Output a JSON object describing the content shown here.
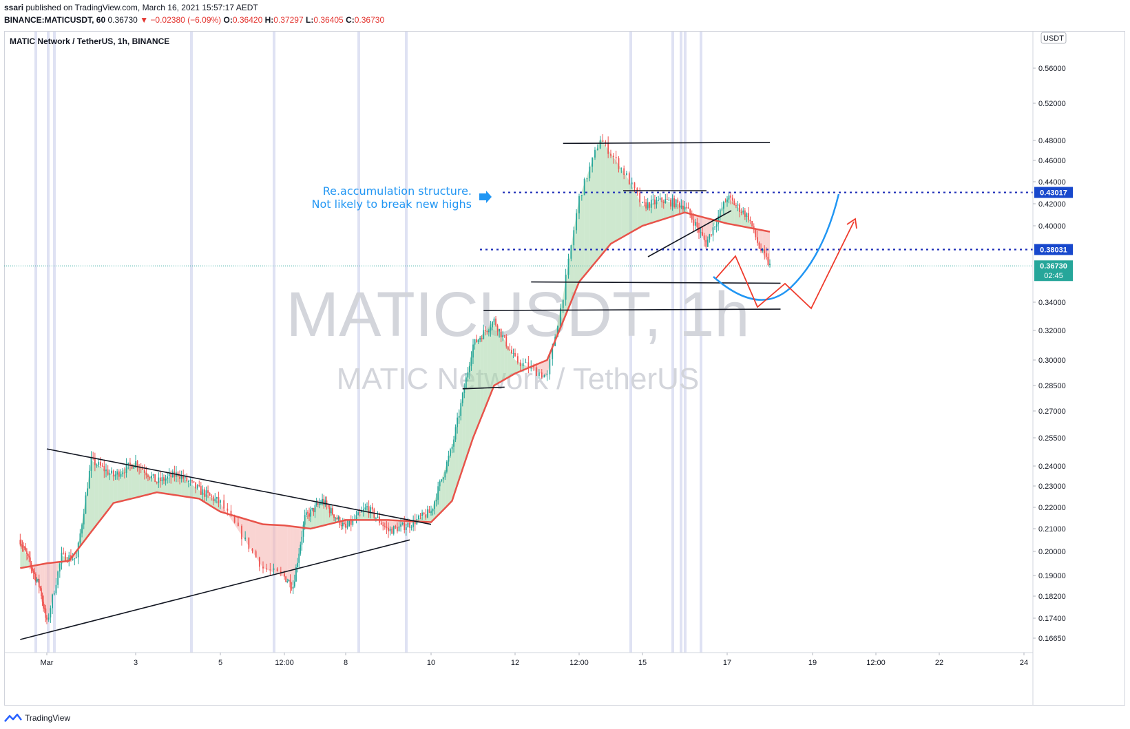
{
  "header": {
    "author": "ssari",
    "published_text": "published on TradingView.com, March 16, 2021 15:57:17 AEDT",
    "symbol_line": "BINANCE:MATICUSDT, 60",
    "last": "0.36730",
    "change": "▼ −0.02380 (−6.09%)",
    "o_label": "O:",
    "o": "0.36420",
    "h_label": "H:",
    "h": "0.37297",
    "l_label": "L:",
    "l": "0.36405",
    "c_label": "C:",
    "c": "0.36730"
  },
  "pane_title": "MATIC Network / TetherUS, 1h, BINANCE",
  "currency_badge": "USDT",
  "watermark": {
    "symbol": "MATICUSDT, 1h",
    "name": "MATIC Network / TetherUS"
  },
  "annotation": {
    "line1": "Re.accumulation structure.",
    "line2": "Not likely to break new highs"
  },
  "price_tags": [
    {
      "value": "0.43017",
      "color": "#1848cc"
    },
    {
      "value": "0.38031",
      "color": "#1848cc"
    },
    {
      "value": "0.36730",
      "sub": "02:45",
      "color": "#26a69a"
    }
  ],
  "footer": {
    "brand": "TradingView"
  },
  "colors": {
    "up": "#26a69a",
    "down": "#ef5350",
    "ema": "#e8534a",
    "cloud_up": "#a5d6a7",
    "cloud_down": "#f4b1ad",
    "level": "#1f2fb8",
    "curve_blue": "#2196f3",
    "path_red": "#ef3b2c",
    "session_band": "#c5cae9"
  },
  "chart_data": {
    "type": "candlestick",
    "scale": "log",
    "ylim": [
      0.162,
      0.595
    ],
    "y_ticks": [
      "0.56000",
      "0.52000",
      "0.48000",
      "0.46000",
      "0.44000",
      "0.42000",
      "0.40000",
      "0.34000",
      "0.32000",
      "0.30000",
      "0.28500",
      "0.27000",
      "0.25500",
      "0.24000",
      "0.23000",
      "0.22000",
      "0.21000",
      "0.20000",
      "0.19000",
      "0.18200",
      "0.17400",
      "0.16650"
    ],
    "x_ticks": [
      "Mar",
      "3",
      "5",
      "12:00",
      "8",
      "10",
      "12",
      "12:00",
      "15",
      "17",
      "19",
      "12:00",
      "22",
      "24"
    ],
    "price_path": [
      [
        "Feb 28 00:00",
        0.205
      ],
      [
        "Feb 28 18:00",
        0.185
      ],
      [
        "Mar 1 00:00",
        0.172
      ],
      [
        "Mar 1 08:00",
        0.198
      ],
      [
        "Mar 1 16:00",
        0.197
      ],
      [
        "Mar 2 00:00",
        0.243
      ],
      [
        "Mar 2 12:00",
        0.235
      ],
      [
        "Mar 3 00:00",
        0.242
      ],
      [
        "Mar 3 12:00",
        0.232
      ],
      [
        "Mar 4 00:00",
        0.236
      ],
      [
        "Mar 4 12:00",
        0.228
      ],
      [
        "Mar 5 00:00",
        0.222
      ],
      [
        "Mar 5 12:00",
        0.193
      ],
      [
        "Mar 6 00:00",
        0.186
      ],
      [
        "Mar 6 08:00",
        0.215
      ],
      [
        "Mar 6 20:00",
        0.223
      ],
      [
        "Mar 7 12:00",
        0.21
      ],
      [
        "Mar 8 00:00",
        0.22
      ],
      [
        "Mar 8 12:00",
        0.209
      ],
      [
        "Mar 9 00:00",
        0.212
      ],
      [
        "Mar 9 12:00",
        0.218
      ],
      [
        "Mar 10 00:00",
        0.25
      ],
      [
        "Mar 10 12:00",
        0.31
      ],
      [
        "Mar 11 00:00",
        0.327
      ],
      [
        "Mar 11 12:00",
        0.3
      ],
      [
        "Mar 12 00:00",
        0.29
      ],
      [
        "Mar 12 06:00",
        0.345
      ],
      [
        "Mar 12 12:00",
        0.425
      ],
      [
        "Mar 12 20:00",
        0.482
      ],
      [
        "Mar 13 06:00",
        0.445
      ],
      [
        "Mar 13 12:00",
        0.418
      ],
      [
        "Mar 14 00:00",
        0.423
      ],
      [
        "Mar 14 12:00",
        0.418
      ],
      [
        "Mar 15 00:00",
        0.385
      ],
      [
        "Mar 15 12:00",
        0.426
      ],
      [
        "Mar 16 00:00",
        0.408
      ],
      [
        "Mar 16 06:00",
        0.382
      ],
      [
        "Mar 16 12:00",
        0.3673
      ]
    ],
    "ema": [
      [
        "Feb 28 00:00",
        0.193
      ],
      [
        "Mar 1 12:00",
        0.196
      ],
      [
        "Mar 2 12:00",
        0.222
      ],
      [
        "Mar 3 12:00",
        0.227
      ],
      [
        "Mar 4 12:00",
        0.224
      ],
      [
        "Mar 5 12:00",
        0.212
      ],
      [
        "Mar 6 12:00",
        0.21
      ],
      [
        "Mar 7 12:00",
        0.214
      ],
      [
        "Mar 8 12:00",
        0.214
      ],
      [
        "Mar 9 12:00",
        0.213
      ],
      [
        "Mar 10 00:00",
        0.223
      ],
      [
        "Mar 10 12:00",
        0.255
      ],
      [
        "Mar 11 00:00",
        0.285
      ],
      [
        "Mar 11 12:00",
        0.292
      ],
      [
        "Mar 12 00:00",
        0.3
      ],
      [
        "Mar 12 12:00",
        0.355
      ],
      [
        "Mar 13 00:00",
        0.385
      ],
      [
        "Mar 13 12:00",
        0.4
      ],
      [
        "Mar 14 12:00",
        0.412
      ],
      [
        "Mar 15 12:00",
        0.402
      ],
      [
        "Mar 16 12:00",
        0.395
      ]
    ],
    "drawings": {
      "triangle_upper": [
        [
          "Mar 1 00:00",
          0.249
        ],
        [
          "Mar 9 12:00",
          0.212
        ]
      ],
      "triangle_lower": [
        [
          "Feb 28 00:00",
          0.166
        ],
        [
          "Mar 9 00:00",
          0.205
        ]
      ],
      "range_high": [
        [
          "Mar 12 06:00",
          0.477
        ],
        [
          "Mar 16 12:00",
          0.478
        ]
      ],
      "support_1": [
        [
          "Mar 11 18:00",
          0.355
        ],
        [
          "Mar 16 18:00",
          0.354
        ]
      ],
      "support_2": [
        [
          "Mar 10 18:00",
          0.334
        ],
        [
          "Mar 16 18:00",
          0.335
        ]
      ],
      "support_3": [
        [
          "Mar 10 06:00",
          0.283
        ],
        [
          "Mar 11 06:00",
          0.284
        ]
      ],
      "level_043017": 0.43017,
      "level_038031": 0.38031
    }
  }
}
